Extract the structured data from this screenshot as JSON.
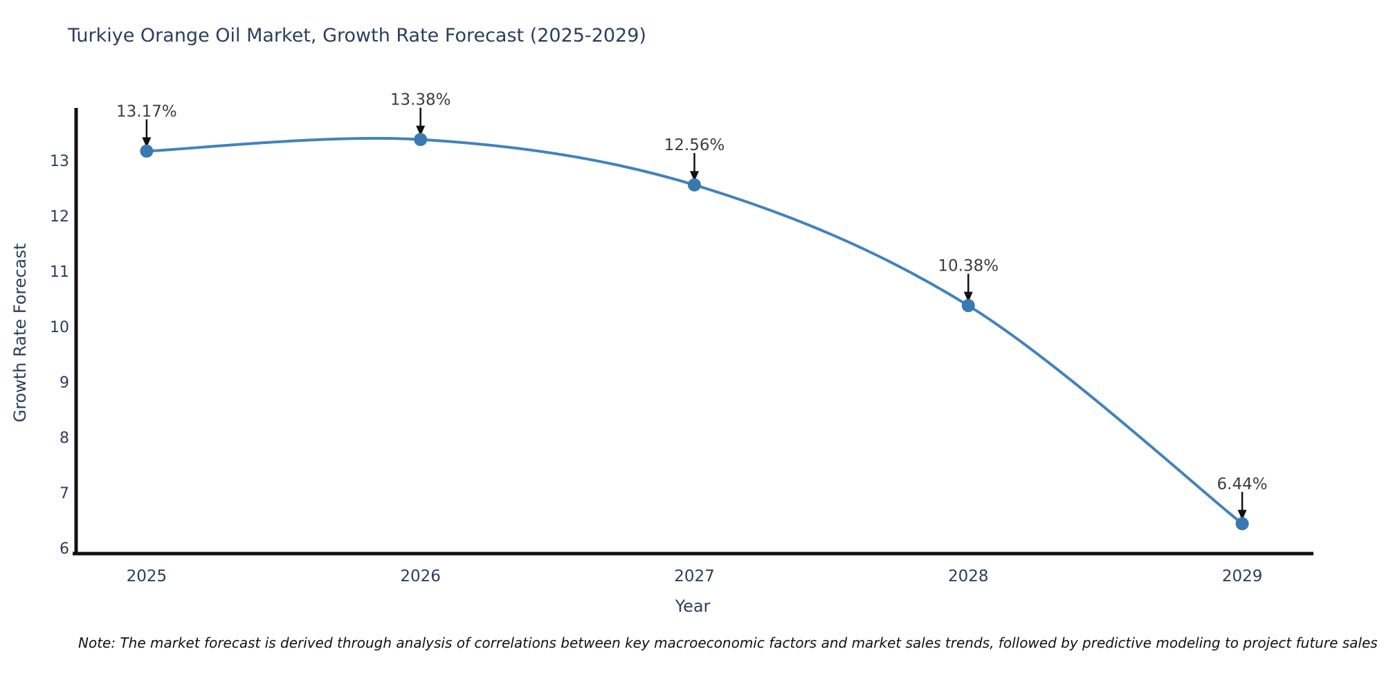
{
  "chart_data": {
    "type": "line",
    "line_shape": "spline",
    "title": "Turkiye Orange Oil Market, Growth Rate Forecast (2025-2029)",
    "xlabel": "Year",
    "ylabel": "Growth Rate Forecast",
    "x": [
      2025,
      2026,
      2027,
      2028,
      2029
    ],
    "y": [
      13.17,
      13.38,
      12.56,
      10.38,
      6.44
    ],
    "point_labels": [
      "13.17%",
      "13.38%",
      "12.56%",
      "10.38%",
      "6.44%"
    ],
    "yticks": [
      6,
      7,
      8,
      9,
      10,
      11,
      12,
      13
    ],
    "xlim": [
      2024.73,
      2029.26
    ],
    "ylim": [
      5.9,
      13.925
    ],
    "grid": false,
    "legend": false,
    "colors": {
      "line": "#4183bd",
      "marker": "#3a78b2",
      "axis": "#111111",
      "arrow": "#111111",
      "tick_text": "#2a3f5f",
      "annotation_text": "#3d3d3d",
      "title_text": "#2a3f5f"
    }
  },
  "note": "Note: The market forecast is derived through analysis of correlations between key macroeconomic factors and market sales trends, followed by predictive modeling to project future sales"
}
